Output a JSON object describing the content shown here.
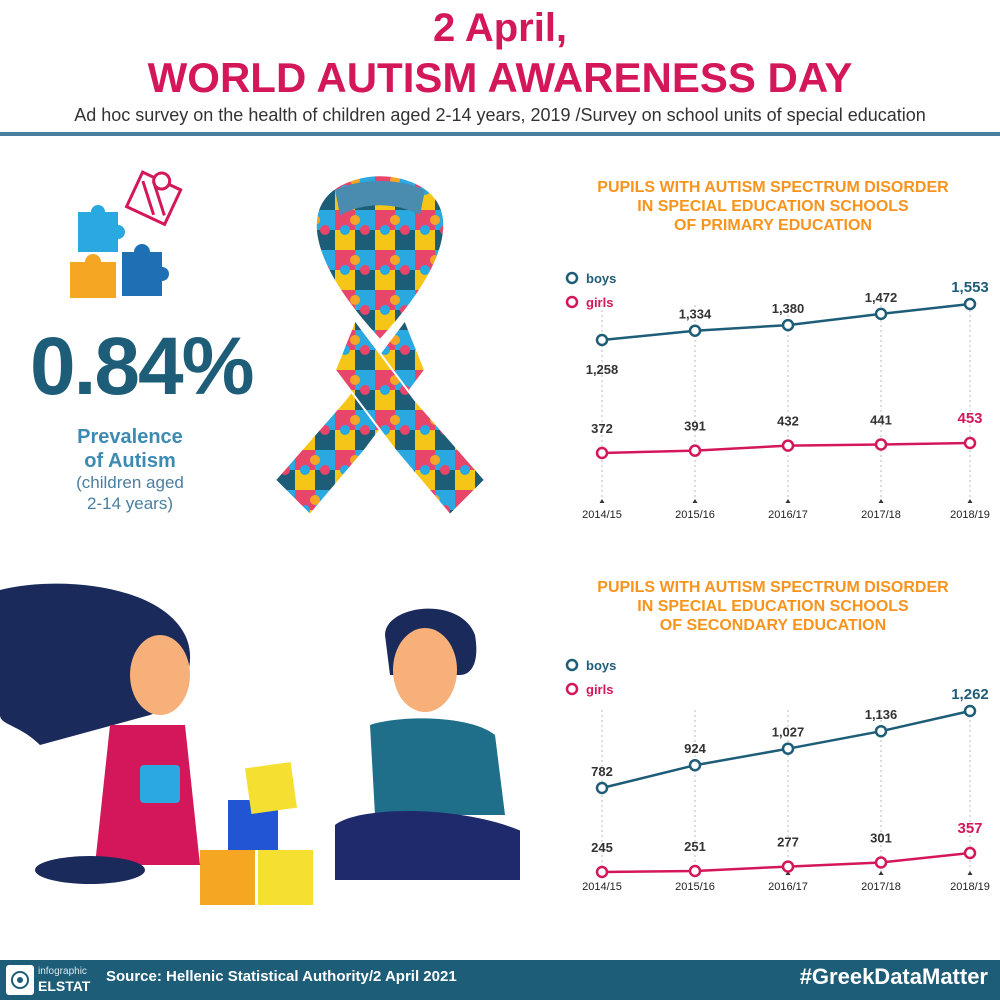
{
  "header": {
    "title_line1": "2 April,",
    "title_line2": "WORLD AUTISM AWARENESS DAY",
    "subtitle": "Ad hoc survey on the health of children aged 2-14 years, 2019 /Survey on school units of special education"
  },
  "prevalence": {
    "value": "0.84%",
    "label_line1": "Prevalence",
    "label_line2": "of Autism",
    "note_line1": "(children aged",
    "note_line2": "2-14 years)"
  },
  "colors": {
    "accent": "#d4175a",
    "boys": "#1e5d78",
    "girls": "#d4175a",
    "title_orange": "#f7941d",
    "footer": "#1e5d78"
  },
  "icons": [
    "puzzle-pieces-icon",
    "awareness-ribbon-icon",
    "children-playing-illustration",
    "elstat-logo-icon"
  ],
  "chart_data": [
    {
      "type": "line",
      "title_lines": [
        "PUPILS WITH AUTISM SPECTRUM DISORDER",
        "IN SPECIAL EDUCATION SCHOOLS",
        "OF PRIMARY EDUCATION"
      ],
      "categories": [
        "2014/15",
        "2015/16",
        "2016/17",
        "2017/18",
        "2018/19"
      ],
      "series": [
        {
          "name": "boys",
          "values": [
            1258,
            1334,
            1380,
            1472,
            1553
          ],
          "labels": [
            "1,258",
            "1,334",
            "1,380",
            "1,472",
            "1,553"
          ]
        },
        {
          "name": "girls",
          "values": [
            372,
            391,
            432,
            441,
            453
          ],
          "labels": [
            "372",
            "391",
            "432",
            "441",
            "453"
          ]
        }
      ],
      "legend": "top-left",
      "grid": false
    },
    {
      "type": "line",
      "title_lines": [
        "PUPILS WITH AUTISM SPECTRUM DISORDER",
        "IN SPECIAL EDUCATION SCHOOLS",
        "OF SECONDARY EDUCATION"
      ],
      "categories": [
        "2014/15",
        "2015/16",
        "2016/17",
        "2017/18",
        "2018/19"
      ],
      "series": [
        {
          "name": "boys",
          "values": [
            782,
            924,
            1027,
            1136,
            1262
          ],
          "labels": [
            "782",
            "924",
            "1,027",
            "1,136",
            "1,262"
          ]
        },
        {
          "name": "girls",
          "values": [
            245,
            251,
            277,
            301,
            357
          ],
          "labels": [
            "245",
            "251",
            "277",
            "301",
            "357"
          ]
        }
      ],
      "legend": "top-left",
      "grid": false
    }
  ],
  "footer": {
    "logo_line1": "infographic",
    "logo_line2": "ELSTAT",
    "source": "Source: Hellenic Statistical Authority/2 April 2021",
    "hashtag": "#GreekDataMatter"
  }
}
